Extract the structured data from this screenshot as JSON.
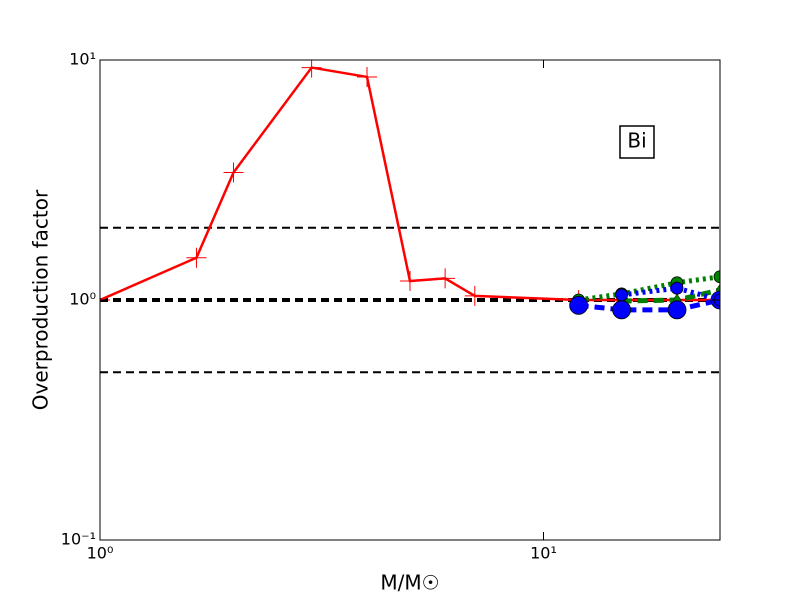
{
  "chart_data": {
    "type": "line",
    "xlabel": "M/M☉",
    "ylabel": "Overproduction factor",
    "annotation": "Bi",
    "xscale": "log",
    "yscale": "log",
    "xlim": [
      1,
      25
    ],
    "ylim": [
      0.1,
      10
    ],
    "xticks": [
      {
        "value": 1,
        "label": "10⁰"
      },
      {
        "value": 10,
        "label": "10¹"
      }
    ],
    "yticks": [
      {
        "value": 0.1,
        "label": "10⁻¹"
      },
      {
        "value": 1,
        "label": "10⁰"
      },
      {
        "value": 10,
        "label": "10¹"
      }
    ],
    "hlines": [
      {
        "value": 2,
        "width": 2
      },
      {
        "value": 1,
        "width": 4
      },
      {
        "value": 0.5,
        "width": 2
      }
    ],
    "series": [
      {
        "color": "#ff0000",
        "marker": "+",
        "dash": "solid",
        "x": [
          1,
          1.65,
          2,
          3,
          4,
          5,
          6,
          7,
          12,
          15,
          20,
          25
        ],
        "values": [
          1.0,
          1.5,
          3.4,
          9.3,
          8.5,
          1.2,
          1.23,
          1.04,
          1.0,
          1.0,
          1.0,
          1.0
        ]
      },
      {
        "color": "#008000",
        "marker": "o",
        "dash": "dotted",
        "x": [
          12,
          15,
          20,
          25
        ],
        "values": [
          1.0,
          1.06,
          1.18,
          1.25
        ]
      },
      {
        "color": "#008000",
        "marker": "d",
        "dash": "dashed",
        "x": [
          15,
          20,
          25
        ],
        "values": [
          0.99,
          1.0,
          1.1
        ]
      },
      {
        "color": "#0000ff",
        "marker": "O",
        "dash": "dashed",
        "x": [
          12,
          15,
          20,
          25
        ],
        "values": [
          0.95,
          0.91,
          0.91,
          1.0
        ]
      },
      {
        "color": "#0000ff",
        "marker": "o",
        "dash": "dotted",
        "x": [
          15,
          20,
          25
        ],
        "values": [
          1.05,
          1.12,
          1.0
        ]
      }
    ]
  }
}
